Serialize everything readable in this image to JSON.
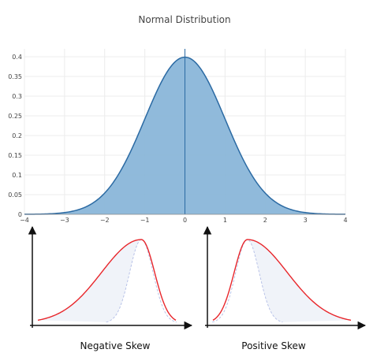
{
  "chart_data": [
    {
      "type": "area",
      "title": "Normal Distribution",
      "xlabel": "",
      "ylabel": "",
      "xlim": [
        -4,
        4
      ],
      "ylim": [
        0,
        0.42
      ],
      "x_ticks": [
        -4,
        -3,
        -2,
        -1,
        0,
        1,
        2,
        3,
        4
      ],
      "x_tick_labels": [
        "−4",
        "−3",
        "−2",
        "−1",
        "0",
        "1",
        "2",
        "3",
        "4"
      ],
      "y_ticks": [
        0,
        0.05,
        0.1,
        0.15,
        0.2,
        0.25,
        0.3,
        0.35,
        0.4
      ],
      "y_tick_labels": [
        "0",
        "0.05",
        "0.1",
        "0.15",
        "0.2",
        "0.25",
        "0.3",
        "0.35",
        "0.4"
      ],
      "grid": true,
      "series": [
        {
          "x": [
            -4,
            -3.5,
            -3,
            -2.5,
            -2,
            -1.5,
            -1,
            -0.5,
            0,
            0.5,
            1,
            1.5,
            2,
            2.5,
            3,
            3.5,
            4
          ],
          "values": [
            0.0001,
            0.0009,
            0.0044,
            0.0175,
            0.054,
            0.1295,
            0.242,
            0.3521,
            0.3989,
            0.3521,
            0.242,
            0.1295,
            0.054,
            0.0175,
            0.0044,
            0.0009,
            0.0001
          ]
        }
      ],
      "vline_x": 0,
      "fill_color": "#8ab6d9",
      "line_color": "#2b6aa3"
    },
    {
      "type": "line",
      "caption": "Negative Skew",
      "skew": "negative",
      "curve_color": "#e8262b",
      "reference_color": "#b9c3e8"
    },
    {
      "type": "line",
      "caption": "Positive Skew",
      "skew": "positive",
      "curve_color": "#e8262b",
      "reference_color": "#b9c3e8"
    }
  ]
}
